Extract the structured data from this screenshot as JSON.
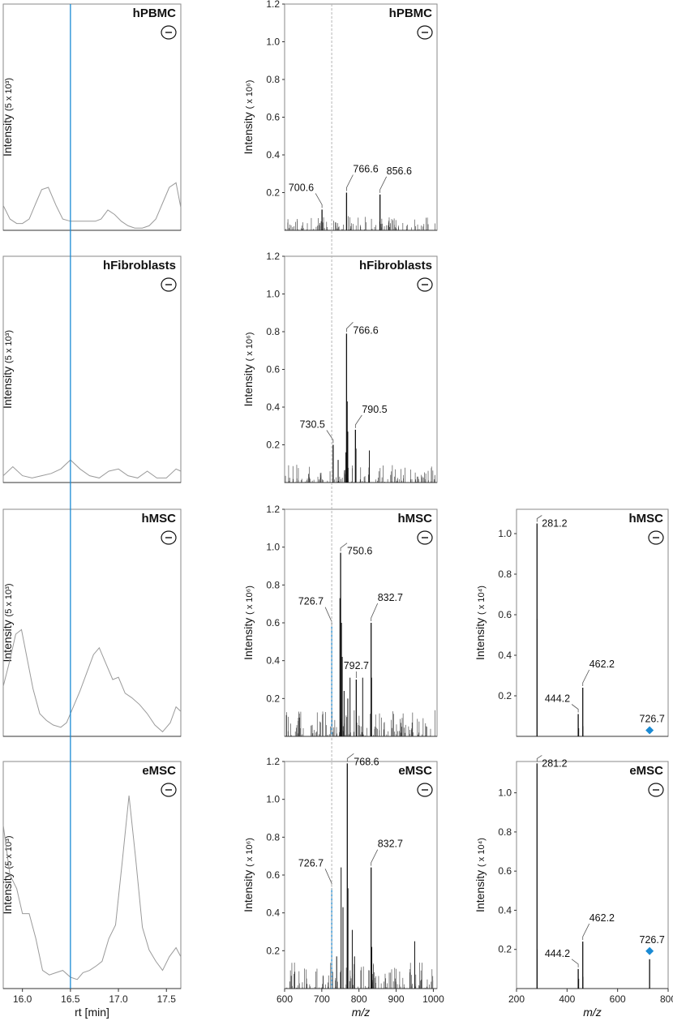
{
  "colors": {
    "line": "#111111",
    "chrom": "#9a9a9a",
    "highlight": "#1a8ad4",
    "frame": "#8a8a8a",
    "guide": "#b5b5b5"
  },
  "chart_data": [
    {
      "id": "chrom-hPBMC",
      "type": "line",
      "title": "hPBMC",
      "polarity": "⊖",
      "ylabel_main": "Intensity",
      "ylabel_unit": "(5 x 10³)",
      "xlim": [
        15.8,
        17.65
      ],
      "ylim": [
        0,
        1
      ],
      "x": [
        15.8,
        15.87,
        15.94,
        16.0,
        16.07,
        16.14,
        16.2,
        16.27,
        16.35,
        16.42,
        16.5,
        16.56,
        16.62,
        16.69,
        16.76,
        16.82,
        16.89,
        16.96,
        17.03,
        17.1,
        17.17,
        17.25,
        17.32,
        17.39,
        17.46,
        17.53,
        17.6,
        17.65
      ],
      "y": [
        0.11,
        0.05,
        0.03,
        0.03,
        0.05,
        0.12,
        0.18,
        0.19,
        0.11,
        0.05,
        0.04,
        0.04,
        0.04,
        0.04,
        0.04,
        0.05,
        0.09,
        0.07,
        0.04,
        0.02,
        0.01,
        0.01,
        0.02,
        0.05,
        0.12,
        0.19,
        0.21,
        0.1
      ],
      "vline": 16.5
    },
    {
      "id": "chrom-hFibroblasts",
      "type": "line",
      "title": "hFibroblasts",
      "polarity": "⊖",
      "ylabel_main": "Intensity",
      "ylabel_unit": "(5 x 10³)",
      "xlim": [
        15.8,
        17.65
      ],
      "ylim": [
        0,
        1
      ],
      "x": [
        15.8,
        15.9,
        16.0,
        16.1,
        16.2,
        16.3,
        16.4,
        16.5,
        16.6,
        16.7,
        16.8,
        16.9,
        17.0,
        17.1,
        17.2,
        17.3,
        17.4,
        17.5,
        17.6,
        17.65
      ],
      "y": [
        0.03,
        0.07,
        0.03,
        0.02,
        0.03,
        0.04,
        0.06,
        0.1,
        0.06,
        0.03,
        0.02,
        0.05,
        0.06,
        0.03,
        0.02,
        0.05,
        0.02,
        0.02,
        0.06,
        0.05
      ],
      "vline": 16.5
    },
    {
      "id": "chrom-hMSC",
      "type": "line",
      "title": "hMSC",
      "polarity": "⊖",
      "ylabel_main": "Intensity",
      "ylabel_unit": "(5 x 10³)",
      "xlim": [
        15.8,
        17.65
      ],
      "ylim": [
        0,
        1
      ],
      "x": [
        15.8,
        15.86,
        15.93,
        15.99,
        16.05,
        16.11,
        16.18,
        16.25,
        16.32,
        16.4,
        16.46,
        16.52,
        16.6,
        16.67,
        16.74,
        16.8,
        16.87,
        16.94,
        17.0,
        17.07,
        17.14,
        17.22,
        17.3,
        17.38,
        17.46,
        17.54,
        17.6,
        17.65
      ],
      "y": [
        0.22,
        0.32,
        0.45,
        0.47,
        0.34,
        0.21,
        0.1,
        0.07,
        0.05,
        0.04,
        0.06,
        0.12,
        0.2,
        0.28,
        0.36,
        0.39,
        0.32,
        0.25,
        0.26,
        0.19,
        0.17,
        0.14,
        0.1,
        0.05,
        0.02,
        0.06,
        0.13,
        0.11
      ],
      "vline": 16.5
    },
    {
      "id": "chrom-eMSC",
      "type": "line",
      "title": "eMSC",
      "polarity": "⊖",
      "ylabel_main": "Intensity",
      "ylabel_unit": "(5 x 10³)",
      "xlim": [
        15.8,
        17.65
      ],
      "ylim": [
        0,
        1
      ],
      "x": [
        15.8,
        15.87,
        15.94,
        16.0,
        16.07,
        16.14,
        16.21,
        16.28,
        16.35,
        16.42,
        16.5,
        16.57,
        16.63,
        16.7,
        16.77,
        16.83,
        16.9,
        16.97,
        17.04,
        17.11,
        17.18,
        17.25,
        17.32,
        17.39,
        17.46,
        17.53,
        17.6,
        17.65
      ],
      "y": [
        0.72,
        0.5,
        0.44,
        0.33,
        0.33,
        0.22,
        0.08,
        0.06,
        0.07,
        0.08,
        0.05,
        0.04,
        0.07,
        0.08,
        0.1,
        0.12,
        0.22,
        0.28,
        0.56,
        0.85,
        0.57,
        0.27,
        0.17,
        0.12,
        0.08,
        0.14,
        0.18,
        0.14
      ],
      "vline": 16.5,
      "xticks": [
        "16.0",
        "16.5",
        "17.0",
        "17.5"
      ],
      "xtick_vals": [
        16.0,
        16.5,
        17.0,
        17.5
      ],
      "xlabel": "rt [min]"
    },
    {
      "id": "ms-hPBMC",
      "type": "bar",
      "title": "hPBMC",
      "polarity": "⊖",
      "ylabel_main": "Intensity",
      "ylabel_unit": "( x 10⁶)",
      "xlim": [
        600,
        1010
      ],
      "ylim": [
        0,
        1.2
      ],
      "yticks": [
        "0.2",
        "0.4",
        "0.6",
        "0.8",
        "1.0",
        "1.2"
      ],
      "ytick_vals": [
        0.2,
        0.4,
        0.6,
        0.8,
        1.0,
        1.2
      ],
      "peaks": [
        {
          "x": 700.6,
          "y": 0.11,
          "label": "700.6",
          "color": "line"
        },
        {
          "x": 766.6,
          "y": 0.2,
          "label": "766.6",
          "color": "line"
        },
        {
          "x": 856.6,
          "y": 0.19,
          "label": "856.6",
          "color": "line"
        }
      ],
      "noise_max": 0.075,
      "noise_count": 150,
      "noise_seed": 3,
      "vline": 726.7
    },
    {
      "id": "ms-hFibroblasts",
      "type": "bar",
      "title": "hFibroblasts",
      "polarity": "⊖",
      "ylabel_main": "Intensity",
      "ylabel_unit": "( x 10⁶)",
      "xlim": [
        600,
        1010
      ],
      "ylim": [
        0,
        1.2
      ],
      "yticks": [
        "0.2",
        "0.4",
        "0.6",
        "0.8",
        "1.0",
        "1.2"
      ],
      "ytick_vals": [
        0.2,
        0.4,
        0.6,
        0.8,
        1.0,
        1.2
      ],
      "peaks": [
        {
          "x": 730.5,
          "y": 0.2,
          "label": "730.5",
          "color": "line"
        },
        {
          "x": 766.6,
          "y": 0.79,
          "label": "766.6",
          "color": "line"
        },
        {
          "x": 790.5,
          "y": 0.28,
          "label": "790.5",
          "color": "line"
        }
      ],
      "extra": [
        [
          768.5,
          0.43
        ],
        [
          770.0,
          0.27
        ],
        [
          764.8,
          0.16
        ],
        [
          792.0,
          0.18
        ],
        [
          828,
          0.17
        ],
        [
          744,
          0.12
        ]
      ],
      "noise_max": 0.1,
      "noise_count": 160,
      "noise_seed": 7,
      "vline": 726.7
    },
    {
      "id": "ms-hMSC",
      "type": "bar",
      "title": "hMSC",
      "polarity": "⊖",
      "ylabel_main": "Intensity",
      "ylabel_unit": "( x 10⁶)",
      "xlim": [
        600,
        1010
      ],
      "ylim": [
        0,
        1.2
      ],
      "yticks": [
        "0.2",
        "0.4",
        "0.6",
        "0.8",
        "1.0",
        "1.2"
      ],
      "ytick_vals": [
        0.2,
        0.4,
        0.6,
        0.8,
        1.0,
        1.2
      ],
      "peaks": [
        {
          "x": 726.7,
          "y": 0.58,
          "label": "726.7",
          "color": "highlight"
        },
        {
          "x": 750.6,
          "y": 0.97,
          "label": "750.6",
          "color": "line"
        },
        {
          "x": 792.7,
          "y": 0.3,
          "label": "792.7",
          "color": "line"
        },
        {
          "x": 832.7,
          "y": 0.6,
          "label": "832.7",
          "color": "line"
        }
      ],
      "extra": [
        [
          748.8,
          0.73
        ],
        [
          753,
          0.6
        ],
        [
          755,
          0.42
        ],
        [
          776,
          0.31
        ],
        [
          810,
          0.31
        ],
        [
          834,
          0.31
        ],
        [
          770,
          0.2
        ],
        [
          760,
          0.24
        ]
      ],
      "noise_max": 0.14,
      "noise_count": 170,
      "noise_seed": 11,
      "vline": 726.7
    },
    {
      "id": "ms-eMSC",
      "type": "bar",
      "title": "eMSC",
      "polarity": "⊖",
      "ylabel_main": "Intensity",
      "ylabel_unit": "( x 10⁶)",
      "xlim": [
        600,
        1010
      ],
      "ylim": [
        0,
        1.2
      ],
      "yticks": [
        "0.2",
        "0.4",
        "0.6",
        "0.8",
        "1.0",
        "1.2"
      ],
      "ytick_vals": [
        0.2,
        0.4,
        0.6,
        0.8,
        1.0,
        1.2
      ],
      "xticks": [
        "600",
        "700",
        "800",
        "900",
        "1000"
      ],
      "xtick_vals": [
        600,
        700,
        800,
        900,
        1000
      ],
      "xlabel": "m/z",
      "peaks": [
        {
          "x": 726.7,
          "y": 0.53,
          "label": "726.7",
          "color": "highlight"
        },
        {
          "x": 768.6,
          "y": 1.19,
          "label": "768.6",
          "color": "line"
        },
        {
          "x": 832.7,
          "y": 0.64,
          "label": "832.7",
          "color": "line"
        }
      ],
      "extra": [
        [
          752,
          0.64
        ],
        [
          757,
          0.43
        ],
        [
          770.5,
          0.53
        ],
        [
          782,
          0.31
        ],
        [
          788,
          0.17
        ],
        [
          740,
          0.17
        ],
        [
          834.5,
          0.22
        ],
        [
          950,
          0.25
        ]
      ],
      "noise_max": 0.14,
      "noise_count": 170,
      "noise_seed": 19,
      "vline": 726.7
    },
    {
      "id": "msms-hMSC",
      "type": "bar",
      "title": "hMSC",
      "polarity": "⊖",
      "ylabel_main": "Intensity",
      "ylabel_unit": "( x 10⁴)",
      "xlim": [
        200,
        800
      ],
      "ylim": [
        0,
        1.12
      ],
      "yticks": [
        "0.2",
        "0.4",
        "0.6",
        "0.8",
        "1.0"
      ],
      "ytick_vals": [
        0.2,
        0.4,
        0.6,
        0.8,
        1.0
      ],
      "peaks": [
        {
          "x": 281.2,
          "y": 1.05,
          "label": "281.2",
          "color": "line"
        },
        {
          "x": 444.2,
          "y": 0.11,
          "label": "444.2",
          "color": "line"
        },
        {
          "x": 462.2,
          "y": 0.24,
          "label": "462.2",
          "color": "line"
        }
      ],
      "extra": [
        [
          281.8,
          0.58
        ],
        [
          446,
          0.04
        ],
        [
          463,
          0.05
        ]
      ],
      "precursor": {
        "x": 726.7,
        "y": 0.03,
        "label": "726.7"
      }
    },
    {
      "id": "msms-eMSC",
      "type": "bar",
      "title": "eMSC",
      "polarity": "⊖",
      "ylabel_main": "Intensity",
      "ylabel_unit": "( x 10⁴)",
      "xlim": [
        200,
        800
      ],
      "ylim": [
        0,
        1.16
      ],
      "yticks": [
        "0.2",
        "0.4",
        "0.6",
        "0.8",
        "1.0"
      ],
      "ytick_vals": [
        0.2,
        0.4,
        0.6,
        0.8,
        1.0
      ],
      "xticks": [
        "200",
        "400",
        "600",
        "800"
      ],
      "xtick_vals": [
        200,
        400,
        600,
        800
      ],
      "xlabel": "m/z",
      "peaks": [
        {
          "x": 281.2,
          "y": 1.15,
          "label": "281.2",
          "color": "line"
        },
        {
          "x": 444.2,
          "y": 0.1,
          "label": "444.2",
          "color": "line"
        },
        {
          "x": 462.2,
          "y": 0.24,
          "label": "462.2",
          "color": "line"
        }
      ],
      "extra": [
        [
          282,
          0.2
        ],
        [
          446,
          0.05
        ],
        [
          463,
          0.06
        ]
      ],
      "precursor": {
        "x": 726.7,
        "y": 0.15,
        "label": "726.7"
      }
    }
  ]
}
